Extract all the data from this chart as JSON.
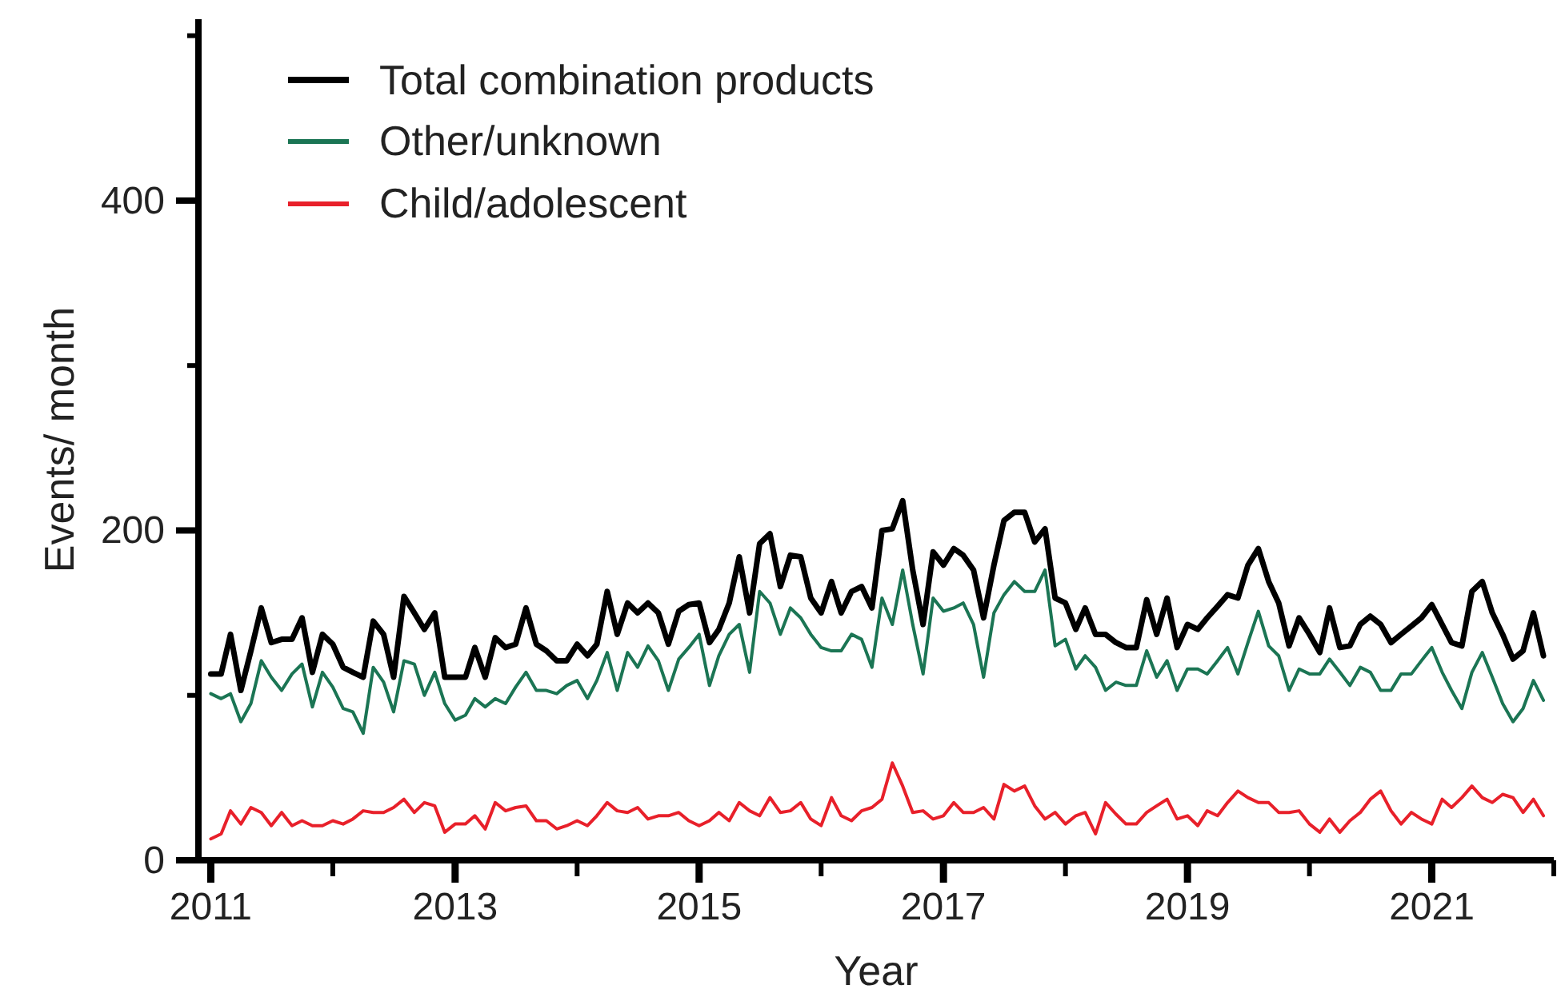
{
  "chart_data": {
    "type": "line",
    "xlabel": "Year",
    "ylabel": "Events/ month",
    "x": [
      "2011-01",
      "2011-02",
      "2011-03",
      "2011-04",
      "2011-05",
      "2011-06",
      "2011-07",
      "2011-08",
      "2011-09",
      "2011-10",
      "2011-11",
      "2011-12",
      "2012-01",
      "2012-02",
      "2012-03",
      "2012-04",
      "2012-05",
      "2012-06",
      "2012-07",
      "2012-08",
      "2012-09",
      "2012-10",
      "2012-11",
      "2012-12",
      "2013-01",
      "2013-02",
      "2013-03",
      "2013-04",
      "2013-05",
      "2013-06",
      "2013-07",
      "2013-08",
      "2013-09",
      "2013-10",
      "2013-11",
      "2013-12",
      "2014-01",
      "2014-02",
      "2014-03",
      "2014-04",
      "2014-05",
      "2014-06",
      "2014-07",
      "2014-08",
      "2014-09",
      "2014-10",
      "2014-11",
      "2014-12",
      "2015-01",
      "2015-02",
      "2015-03",
      "2015-04",
      "2015-05",
      "2015-06",
      "2015-07",
      "2015-08",
      "2015-09",
      "2015-10",
      "2015-11",
      "2015-12",
      "2016-01",
      "2016-02",
      "2016-03",
      "2016-04",
      "2016-05",
      "2016-06",
      "2016-07",
      "2016-08",
      "2016-09",
      "2016-10",
      "2016-11",
      "2016-12",
      "2017-01",
      "2017-02",
      "2017-03",
      "2017-04",
      "2017-05",
      "2017-06",
      "2017-07",
      "2017-08",
      "2017-09",
      "2017-10",
      "2017-11",
      "2017-12",
      "2018-01",
      "2018-02",
      "2018-03",
      "2018-04",
      "2018-05",
      "2018-06",
      "2018-07",
      "2018-08",
      "2018-09",
      "2018-10",
      "2018-11",
      "2018-12",
      "2019-01",
      "2019-02",
      "2019-03",
      "2019-04",
      "2019-05",
      "2019-06",
      "2019-07",
      "2019-08",
      "2019-09",
      "2019-10",
      "2019-11",
      "2019-12",
      "2020-01",
      "2020-02",
      "2020-03",
      "2020-04",
      "2020-05",
      "2020-06",
      "2020-07",
      "2020-08",
      "2020-09",
      "2020-10",
      "2020-11",
      "2020-12",
      "2021-01",
      "2021-02",
      "2021-03",
      "2021-04",
      "2021-05",
      "2021-06",
      "2021-07",
      "2021-08",
      "2021-09",
      "2021-10",
      "2021-11",
      "2021-12"
    ],
    "series": [
      {
        "name": "Total combination products",
        "color": "#000000",
        "values": [
          113,
          113,
          137,
          103,
          127,
          153,
          132,
          134,
          134,
          147,
          114,
          137,
          131,
          117,
          114,
          111,
          145,
          137,
          111,
          160,
          150,
          140,
          150,
          111,
          111,
          111,
          129,
          111,
          135,
          129,
          131,
          153,
          131,
          127,
          121,
          121,
          131,
          124,
          131,
          163,
          137,
          156,
          150,
          156,
          150,
          131,
          151,
          155,
          156,
          132,
          140,
          156,
          184,
          150,
          192,
          198,
          166,
          185,
          184,
          159,
          150,
          169,
          150,
          163,
          166,
          153,
          200,
          201,
          218,
          176,
          143,
          187,
          179,
          189,
          185,
          176,
          147,
          179,
          206,
          211,
          211,
          193,
          201,
          159,
          156,
          140,
          153,
          137,
          137,
          132,
          129,
          129,
          158,
          137,
          159,
          129,
          143,
          140,
          147,
          154,
          161,
          159,
          179,
          189,
          169,
          156,
          130,
          147,
          137,
          126,
          153,
          129,
          130,
          143,
          148,
          143,
          132,
          137,
          142,
          147,
          155,
          143,
          132,
          130,
          163,
          169,
          150,
          137,
          122,
          127,
          150,
          124
        ]
      },
      {
        "name": "Other/unknown",
        "color": "#1b7554",
        "values": [
          101,
          98,
          101,
          84,
          95,
          121,
          111,
          103,
          113,
          119,
          93,
          114,
          105,
          92,
          90,
          77,
          117,
          108,
          90,
          121,
          119,
          100,
          114,
          95,
          85,
          88,
          98,
          93,
          98,
          95,
          105,
          114,
          103,
          103,
          101,
          106,
          109,
          98,
          109,
          126,
          103,
          126,
          117,
          130,
          121,
          103,
          122,
          129,
          137,
          106,
          124,
          137,
          143,
          114,
          163,
          156,
          137,
          153,
          147,
          137,
          129,
          127,
          127,
          137,
          134,
          117,
          159,
          143,
          176,
          143,
          113,
          159,
          151,
          153,
          156,
          143,
          111,
          150,
          161,
          169,
          163,
          163,
          176,
          130,
          134,
          116,
          124,
          117,
          103,
          108,
          106,
          106,
          127,
          111,
          121,
          103,
          116,
          116,
          113,
          121,
          129,
          113,
          132,
          151,
          130,
          124,
          103,
          116,
          113,
          113,
          122,
          114,
          106,
          117,
          114,
          103,
          103,
          113,
          113,
          121,
          129,
          114,
          103,
          92,
          114,
          126,
          111,
          95,
          84,
          92,
          109,
          97
        ]
      },
      {
        "name": "Child/adolescent",
        "color": "#e8202a",
        "values": [
          13,
          16,
          30,
          22,
          32,
          29,
          21,
          29,
          21,
          24,
          21,
          21,
          24,
          22,
          25,
          30,
          29,
          29,
          32,
          37,
          29,
          35,
          33,
          17,
          22,
          22,
          27,
          19,
          35,
          30,
          32,
          33,
          24,
          24,
          19,
          21,
          24,
          21,
          27,
          35,
          30,
          29,
          32,
          25,
          27,
          27,
          29,
          24,
          21,
          24,
          29,
          24,
          35,
          30,
          27,
          38,
          29,
          30,
          35,
          25,
          21,
          38,
          27,
          24,
          30,
          32,
          37,
          59,
          45,
          29,
          30,
          25,
          27,
          35,
          29,
          29,
          32,
          25,
          46,
          42,
          45,
          33,
          25,
          29,
          22,
          27,
          29,
          16,
          35,
          28,
          22,
          22,
          29,
          33,
          37,
          25,
          27,
          21,
          30,
          27,
          35,
          42,
          38,
          35,
          35,
          29,
          29,
          30,
          22,
          17,
          25,
          17,
          24,
          29,
          37,
          42,
          30,
          22,
          29,
          25,
          22,
          37,
          32,
          38,
          45,
          38,
          35,
          40,
          38,
          29,
          37,
          27
        ]
      }
    ],
    "xlim": [
      "2010-11-25",
      "2022-01"
    ],
    "xticks": [
      "2011",
      {
        "value": "2012",
        "label": null
      },
      "2013",
      {
        "value": "2014",
        "label": null
      },
      "2015",
      {
        "value": "2016",
        "label": null
      },
      "2017",
      {
        "value": "2018",
        "label": null
      },
      "2019",
      {
        "value": "2020",
        "label": null
      },
      "2021",
      {
        "value": "2022",
        "label": null
      }
    ],
    "ylim": [
      0,
      510
    ],
    "yticks": [
      0,
      {
        "value": 100,
        "label": null
      },
      200,
      {
        "value": 300,
        "label": null
      },
      400,
      {
        "value": 500,
        "label": null
      }
    ],
    "legend": "top left"
  }
}
